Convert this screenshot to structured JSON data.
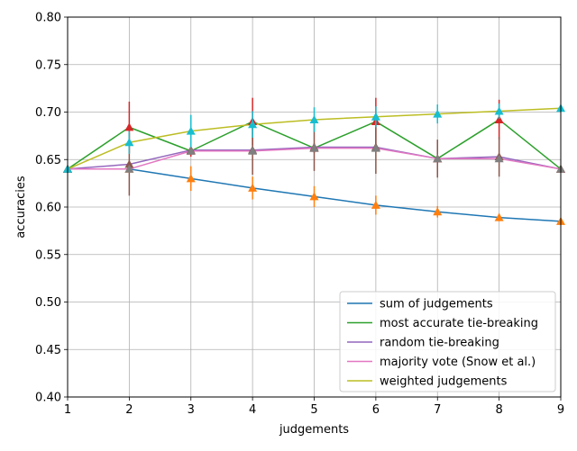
{
  "chart_data": {
    "type": "line",
    "xlabel": "judgements",
    "ylabel": "accuracies",
    "xlim": [
      1,
      9
    ],
    "ylim": [
      0.4,
      0.8
    ],
    "x_ticks": [
      "1",
      "2",
      "3",
      "4",
      "5",
      "6",
      "7",
      "8",
      "9"
    ],
    "y_ticks": [
      "0.40",
      "0.45",
      "0.50",
      "0.55",
      "0.60",
      "0.65",
      "0.70",
      "0.75",
      "0.80"
    ],
    "grid": true,
    "legend_position": "lower-right",
    "x": [
      1,
      2,
      3,
      4,
      5,
      6,
      7,
      8,
      9
    ],
    "series": [
      {
        "name": "sum of judgements",
        "color": "#1f77b4",
        "values": [
          0.64,
          0.64,
          0.63,
          0.62,
          0.611,
          0.602,
          0.595,
          0.589,
          0.585
        ]
      },
      {
        "name": "most accurate tie-breaking",
        "color": "#2ca02c",
        "values": [
          0.64,
          0.684,
          0.659,
          0.69,
          0.662,
          0.69,
          0.651,
          0.692,
          0.64
        ]
      },
      {
        "name": "random tie-breaking",
        "color": "#9467bd",
        "values": [
          0.64,
          0.645,
          0.66,
          0.66,
          0.663,
          0.663,
          0.651,
          0.653,
          0.64
        ]
      },
      {
        "name": "majority vote (Snow et al.)",
        "color": "#e377c2",
        "values": [
          0.64,
          0.64,
          0.659,
          0.659,
          0.662,
          0.662,
          0.651,
          0.651,
          0.64
        ]
      },
      {
        "name": "weighted judgements",
        "color": "#bcbd22",
        "values": [
          0.64,
          0.668,
          0.68,
          0.687,
          0.692,
          0.695,
          0.698,
          0.701,
          0.704
        ]
      }
    ],
    "error_bar_series": [
      {
        "color": "#ff7f0e",
        "marker": "triangle",
        "points": [
          [
            1,
            0.64,
            0.0
          ],
          [
            2,
            0.64,
            0.0
          ],
          [
            3,
            0.63,
            0.013
          ],
          [
            4,
            0.62,
            0.012
          ],
          [
            5,
            0.611,
            0.011
          ],
          [
            6,
            0.602,
            0.01
          ],
          [
            7,
            0.595,
            0.006
          ],
          [
            8,
            0.589,
            0.004
          ],
          [
            9,
            0.585,
            0.0
          ]
        ]
      },
      {
        "color": "#d62728",
        "marker": "triangle",
        "points": [
          [
            1,
            0.64,
            0.0
          ],
          [
            2,
            0.684,
            0.027
          ],
          [
            3,
            0.659,
            0.006
          ],
          [
            4,
            0.69,
            0.025
          ],
          [
            5,
            0.662,
            0.005
          ],
          [
            6,
            0.69,
            0.025
          ],
          [
            7,
            0.651,
            0.004
          ],
          [
            8,
            0.692,
            0.021
          ],
          [
            9,
            0.64,
            0.0
          ]
        ]
      },
      {
        "color": "#8c564b",
        "marker": "triangle",
        "points": [
          [
            1,
            0.64,
            0.0
          ],
          [
            2,
            0.645,
            0.033
          ],
          [
            3,
            0.66,
            0.005
          ],
          [
            4,
            0.66,
            0.026
          ],
          [
            5,
            0.663,
            0.025
          ],
          [
            6,
            0.663,
            0.028
          ],
          [
            7,
            0.651,
            0.02
          ],
          [
            8,
            0.653,
            0.021
          ],
          [
            9,
            0.64,
            0.0
          ]
        ]
      },
      {
        "color": "#7f7f7f",
        "marker": "triangle",
        "points": [
          [
            1,
            0.64,
            0.0
          ],
          [
            2,
            0.64,
            0.004
          ],
          [
            3,
            0.659,
            0.003
          ],
          [
            4,
            0.659,
            0.003
          ],
          [
            5,
            0.662,
            0.002
          ],
          [
            6,
            0.662,
            0.002
          ],
          [
            7,
            0.651,
            0.002
          ],
          [
            8,
            0.651,
            0.002
          ],
          [
            9,
            0.64,
            0.0
          ]
        ]
      },
      {
        "color": "#17becf",
        "marker": "triangle",
        "points": [
          [
            1,
            0.64,
            0.0
          ],
          [
            2,
            0.668,
            0.012
          ],
          [
            3,
            0.68,
            0.017
          ],
          [
            4,
            0.687,
            0.014
          ],
          [
            5,
            0.692,
            0.013
          ],
          [
            6,
            0.695,
            0.011
          ],
          [
            7,
            0.698,
            0.01
          ],
          [
            8,
            0.701,
            0.008
          ],
          [
            9,
            0.704,
            0.0
          ]
        ]
      }
    ]
  }
}
